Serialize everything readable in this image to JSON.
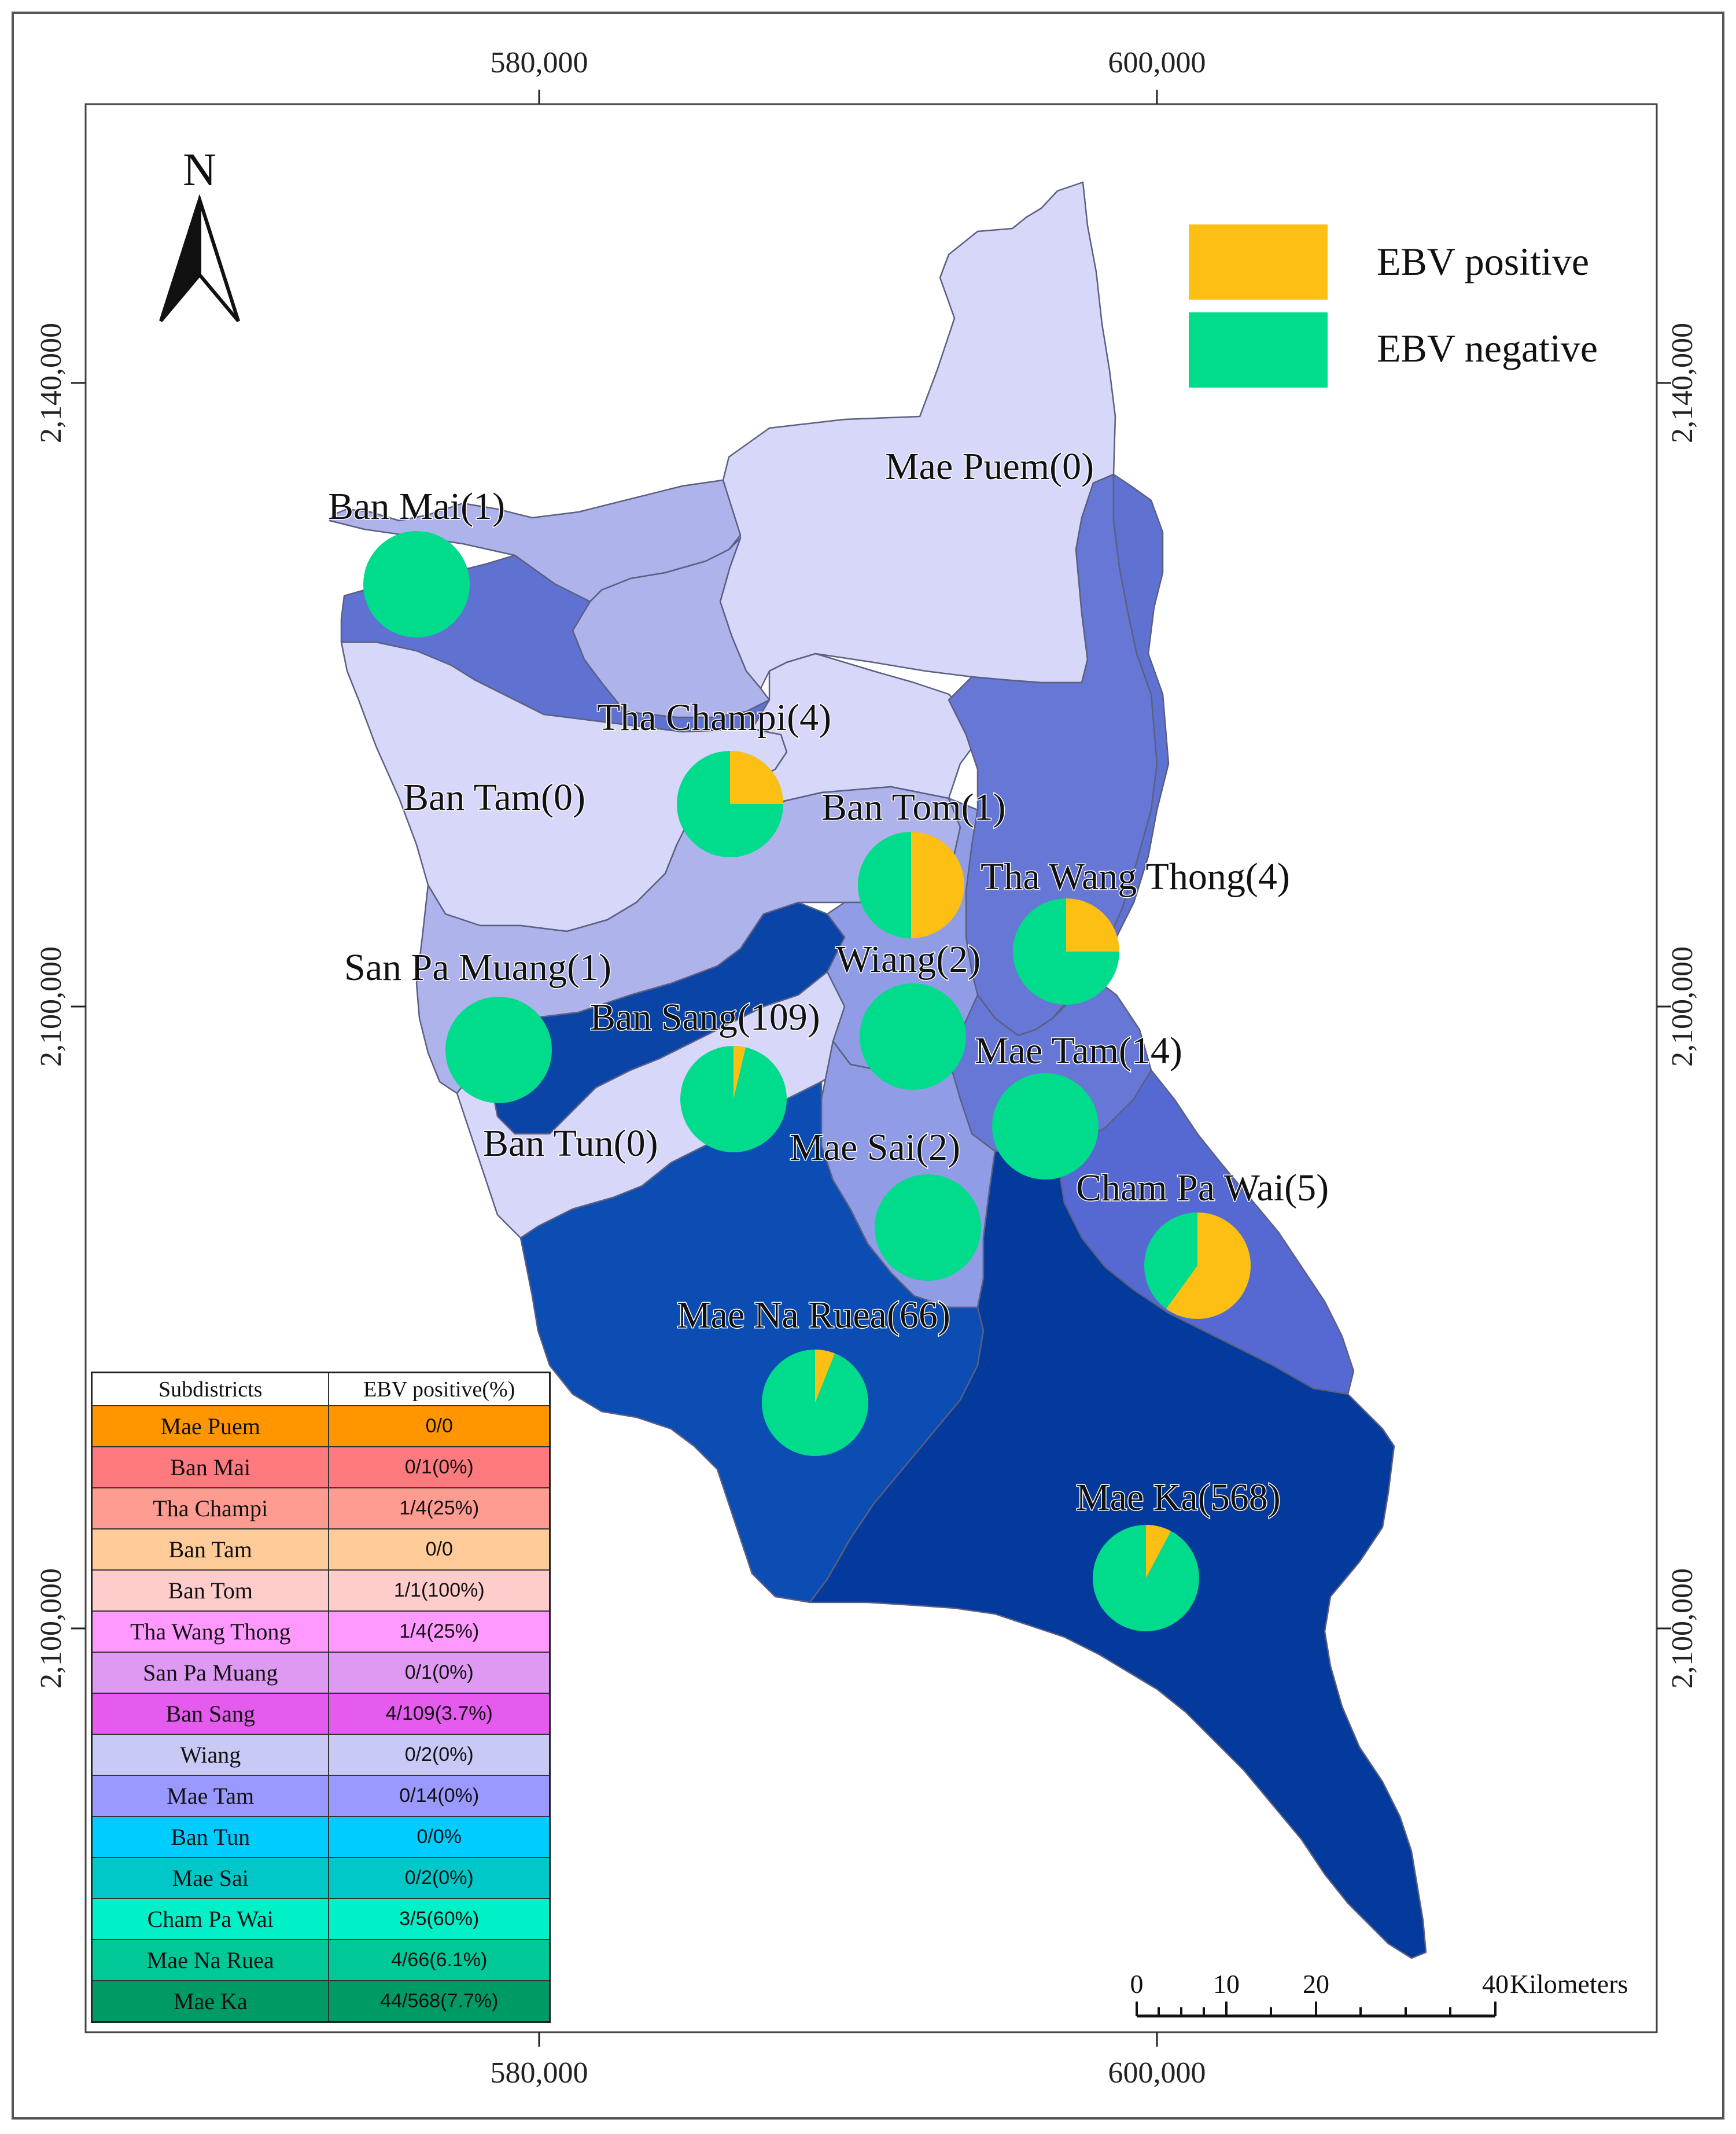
{
  "axes": {
    "top_ticks": [
      "580,000",
      "600,000"
    ],
    "bottom_ticks": [
      "580,000",
      "600,000"
    ],
    "left_ticks": [
      "2,140,000",
      "2,100,000",
      "2,100,000"
    ],
    "right_ticks": [
      "2,140,000",
      "2,100,000",
      "2,100,000"
    ]
  },
  "north_arrow": {
    "label": "N",
    "icon": "north-arrow-icon"
  },
  "legend": {
    "items": [
      {
        "label": "EBV positive",
        "color": "#FDBF13"
      },
      {
        "label": "EBV negative",
        "color": "#00DB8C"
      }
    ]
  },
  "scale_bar": {
    "ticks": [
      "0",
      "10",
      "20",
      "40"
    ],
    "unit": "Kilometers"
  },
  "subdistricts": [
    {
      "label": "Mae Puem(0)",
      "name": "Mae Puem",
      "total": 0,
      "positive": 0,
      "fill": "#D6D7F9"
    },
    {
      "label": "Ban Mai(1)",
      "name": "Ban Mai",
      "total": 1,
      "positive": 0,
      "fill": "#AEB3EC"
    },
    {
      "label": "Tha Champi(4)",
      "name": "Tha Champi",
      "total": 4,
      "positive": 1,
      "fill": "#AEB3EC"
    },
    {
      "label": "Ban Tam(0)",
      "name": "Ban Tam",
      "total": 0,
      "positive": 0,
      "fill": "#D6D7F9"
    },
    {
      "label": "Ban Tom(1)",
      "name": "Ban Tom",
      "total": 1,
      "positive": 1,
      "fill": "#6677D6"
    },
    {
      "label": "Tha Wang Thong(4)",
      "name": "Tha Wang Thong",
      "total": 4,
      "positive": 1,
      "fill": "#6677D6"
    },
    {
      "label": "San Pa Muang(1)",
      "name": "San Pa Muang",
      "total": 1,
      "positive": 0,
      "fill": "#AEB3EC"
    },
    {
      "label": "Ban Sang(109)",
      "name": "Ban Sang",
      "total": 109,
      "positive": 4,
      "fill": "#0944A6"
    },
    {
      "label": "Wiang(2)",
      "name": "Wiang",
      "total": 2,
      "positive": 0,
      "fill": "#909DE6"
    },
    {
      "label": "Mae Tam(14)",
      "name": "Mae Tam",
      "total": 14,
      "positive": 0,
      "fill": "#6677D6"
    },
    {
      "label": "Ban Tun(0)",
      "name": "Ban Tun",
      "total": 0,
      "positive": 0,
      "fill": "#D6D7F9"
    },
    {
      "label": "Mae Sai(2)",
      "name": "Mae Sai",
      "total": 2,
      "positive": 0,
      "fill": "#909DE6"
    },
    {
      "label": "Cham Pa Wai(5)",
      "name": "Cham Pa Wai",
      "total": 5,
      "positive": 3,
      "fill": "#5669D3"
    },
    {
      "label": "Mae Na Ruea(66)",
      "name": "Mae Na Ruea",
      "total": 66,
      "positive": 4,
      "fill": "#0C4DB3"
    },
    {
      "label": "Mae Ka(568)",
      "name": "Mae Ka",
      "total": 568,
      "positive": 44,
      "fill": "#033A9B"
    }
  ],
  "table": {
    "headers": [
      "Subdistricts",
      "EBV positive(%)"
    ],
    "rows": [
      {
        "name": "Mae Puem",
        "value": "0/0",
        "color": "#FF9600"
      },
      {
        "name": "Ban Mai",
        "value": "0/1(0%)",
        "color": "#FF7A7E"
      },
      {
        "name": "Tha Champi",
        "value": "1/4(25%)",
        "color": "#FF9C92"
      },
      {
        "name": "Ban Tam",
        "value": "0/0",
        "color": "#FFCC99"
      },
      {
        "name": "Ban Tom",
        "value": "1/1(100%)",
        "color": "#FFCCCC"
      },
      {
        "name": "Tha Wang Thong",
        "value": "1/4(25%)",
        "color": "#FF99FF"
      },
      {
        "name": "San Pa Muang",
        "value": "0/1(0%)",
        "color": "#DE99F2"
      },
      {
        "name": "Ban Sang",
        "value": "4/109(3.7%)",
        "color": "#E45BEE"
      },
      {
        "name": "Wiang",
        "value": "0/2(0%)",
        "color": "#C9C9F6"
      },
      {
        "name": "Mae Tam",
        "value": "0/14(0%)",
        "color": "#9999FF"
      },
      {
        "name": "Ban Tun",
        "value": "0/0%",
        "color": "#00CCFF"
      },
      {
        "name": "Mae Sai",
        "value": "0/2(0%)",
        "color": "#00C8C8"
      },
      {
        "name": "Cham Pa Wai",
        "value": "3/5(60%)",
        "color": "#00F0C8"
      },
      {
        "name": "Mae Na Ruea",
        "value": "4/66(6.1%)",
        "color": "#00C896"
      },
      {
        "name": "Mae Ka",
        "value": "44/568(7.7%)",
        "color": "#009B64"
      }
    ]
  }
}
